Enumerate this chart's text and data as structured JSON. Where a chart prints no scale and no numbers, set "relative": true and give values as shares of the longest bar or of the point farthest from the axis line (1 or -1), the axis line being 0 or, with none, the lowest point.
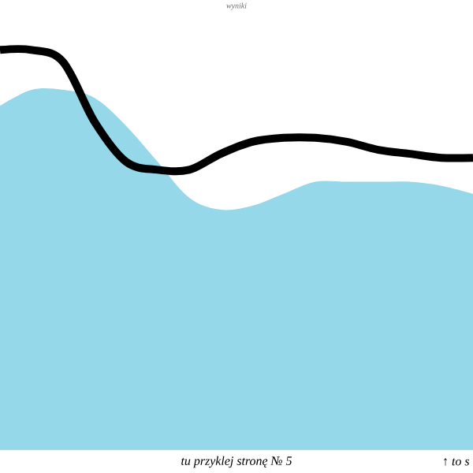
{
  "chart_data": {
    "type": "line",
    "relative": true,
    "title": "wyniki",
    "categories": [
      null,
      null,
      null,
      null,
      null,
      null,
      null,
      null,
      null,
      null,
      null,
      null,
      null,
      null,
      null,
      null
    ],
    "series": [
      {
        "type": "area",
        "color": "#95d8ea",
        "values": [
          0.86,
          0.9,
          0.9,
          0.88,
          0.81,
          0.72,
          0.63,
          0.6,
          0.61,
          0.64,
          0.67,
          0.67,
          0.67,
          0.67,
          0.66,
          0.64
        ]
      },
      {
        "color": "#000000",
        "values": [
          1.0,
          1.0,
          0.97,
          0.82,
          0.72,
          0.7,
          0.7,
          0.74,
          0.77,
          0.78,
          0.78,
          0.77,
          0.75,
          0.74,
          0.73,
          0.73
        ]
      }
    ],
    "annotations": [
      "tu przyklej stronę № 5",
      "↑ to s"
    ]
  }
}
